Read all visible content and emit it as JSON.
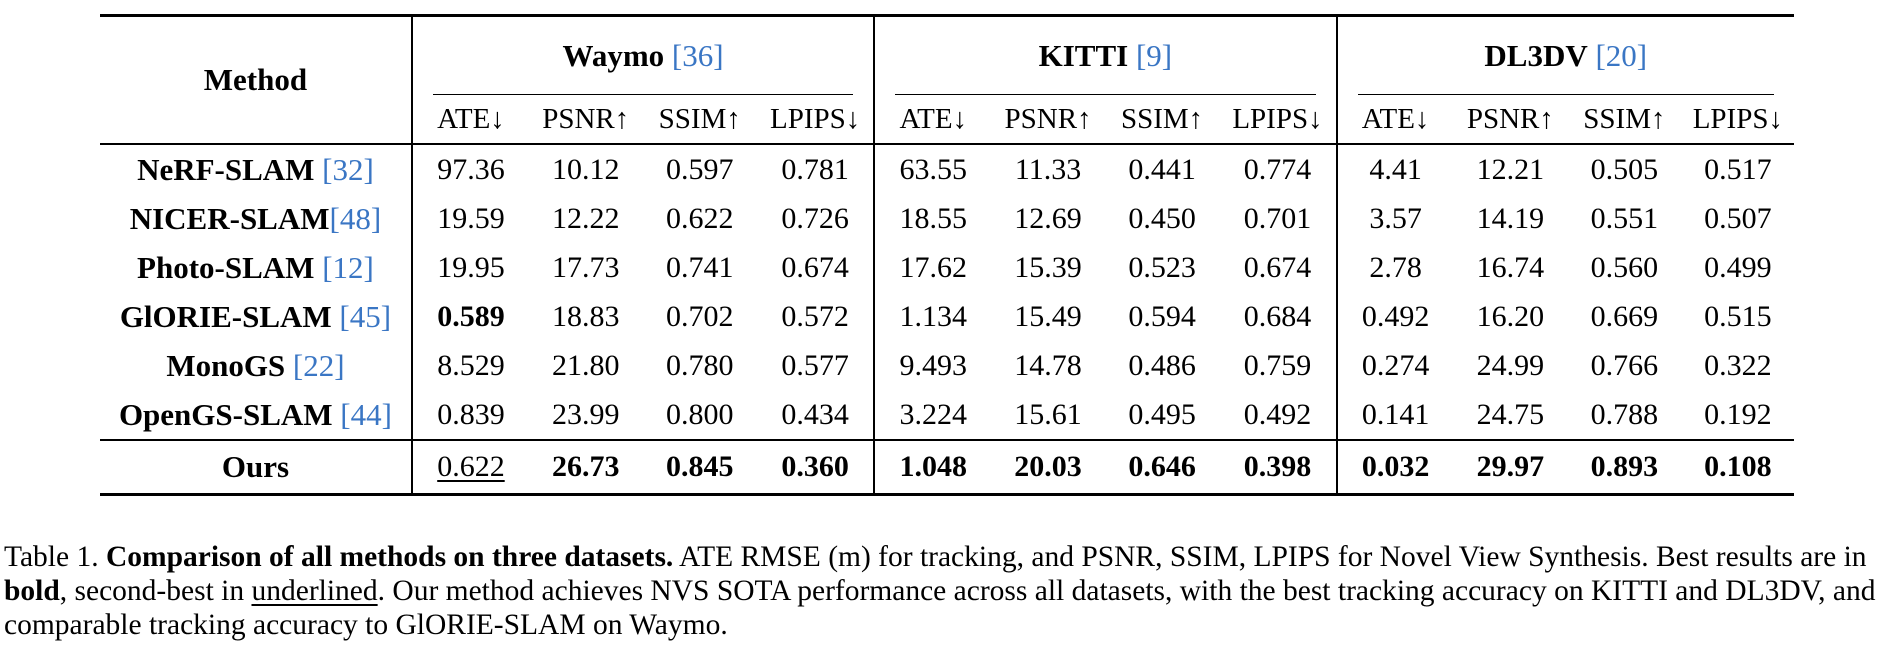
{
  "table": {
    "method_header": "Method",
    "groups": [
      {
        "name": "Waymo",
        "cite": "[36]"
      },
      {
        "name": "KITTI",
        "cite": "[9]"
      },
      {
        "name": "DL3DV",
        "cite": "[20]"
      }
    ],
    "metrics": [
      "ATE↓",
      "PSNR↑",
      "SSIM↑",
      "LPIPS↓"
    ],
    "rows": [
      {
        "method": "NeRF-SLAM",
        "cite": "[32]",
        "sep": " ",
        "values": [
          "97.36",
          "10.12",
          "0.597",
          "0.781",
          "63.55",
          "11.33",
          "0.441",
          "0.774",
          "4.41",
          "12.21",
          "0.505",
          "0.517"
        ]
      },
      {
        "method": "NICER-SLAM",
        "cite": "[48]",
        "sep": "",
        "values": [
          "19.59",
          "12.22",
          "0.622",
          "0.726",
          "18.55",
          "12.69",
          "0.450",
          "0.701",
          "3.57",
          "14.19",
          "0.551",
          "0.507"
        ]
      },
      {
        "method": "Photo-SLAM",
        "cite": "[12]",
        "sep": " ",
        "values": [
          "19.95",
          "17.73",
          "0.741",
          "0.674",
          "17.62",
          "15.39",
          "0.523",
          "0.674",
          "2.78",
          "16.74",
          "0.560",
          "0.499"
        ]
      },
      {
        "method": "GlORIE-SLAM",
        "cite": "[45]",
        "sep": " ",
        "values": [
          "0.589",
          "18.83",
          "0.702",
          "0.572",
          "1.134",
          "15.49",
          "0.594",
          "0.684",
          "0.492",
          "16.20",
          "0.669",
          "0.515"
        ],
        "bold": [
          0
        ]
      },
      {
        "method": "MonoGS",
        "cite": "[22]",
        "sep": " ",
        "values": [
          "8.529",
          "21.80",
          "0.780",
          "0.577",
          "9.493",
          "14.78",
          "0.486",
          "0.759",
          "0.274",
          "24.99",
          "0.766",
          "0.322"
        ]
      },
      {
        "method": "OpenGS-SLAM",
        "cite": "[44]",
        "sep": " ",
        "values": [
          "0.839",
          "23.99",
          "0.800",
          "0.434",
          "3.224",
          "15.61",
          "0.495",
          "0.492",
          "0.141",
          "24.75",
          "0.788",
          "0.192"
        ]
      }
    ],
    "ours": {
      "method": "Ours",
      "values": [
        "0.622",
        "26.73",
        "0.845",
        "0.360",
        "1.048",
        "20.03",
        "0.646",
        "0.398",
        "0.032",
        "29.97",
        "0.893",
        "0.108"
      ],
      "underline": [
        0
      ],
      "bold": [
        1,
        2,
        3,
        4,
        5,
        6,
        7,
        8,
        9,
        10,
        11
      ]
    }
  },
  "caption": {
    "label": "Table 1.",
    "title": "Comparison of all methods on three datasets.",
    "text1": "ATE RMSE (m) for tracking, and PSNR, SSIM, LPIPS for Novel View Synthesis. Best results are in",
    "bold_word": "bold",
    "text2": ", second-best in",
    "underline_word": "underlined",
    "text3": ". Our method achieves NVS SOTA performance across all datasets, with the best tracking accuracy on KITTI and DL3DV, and comparable tracking accuracy to GlORIE-SLAM on Waymo."
  }
}
